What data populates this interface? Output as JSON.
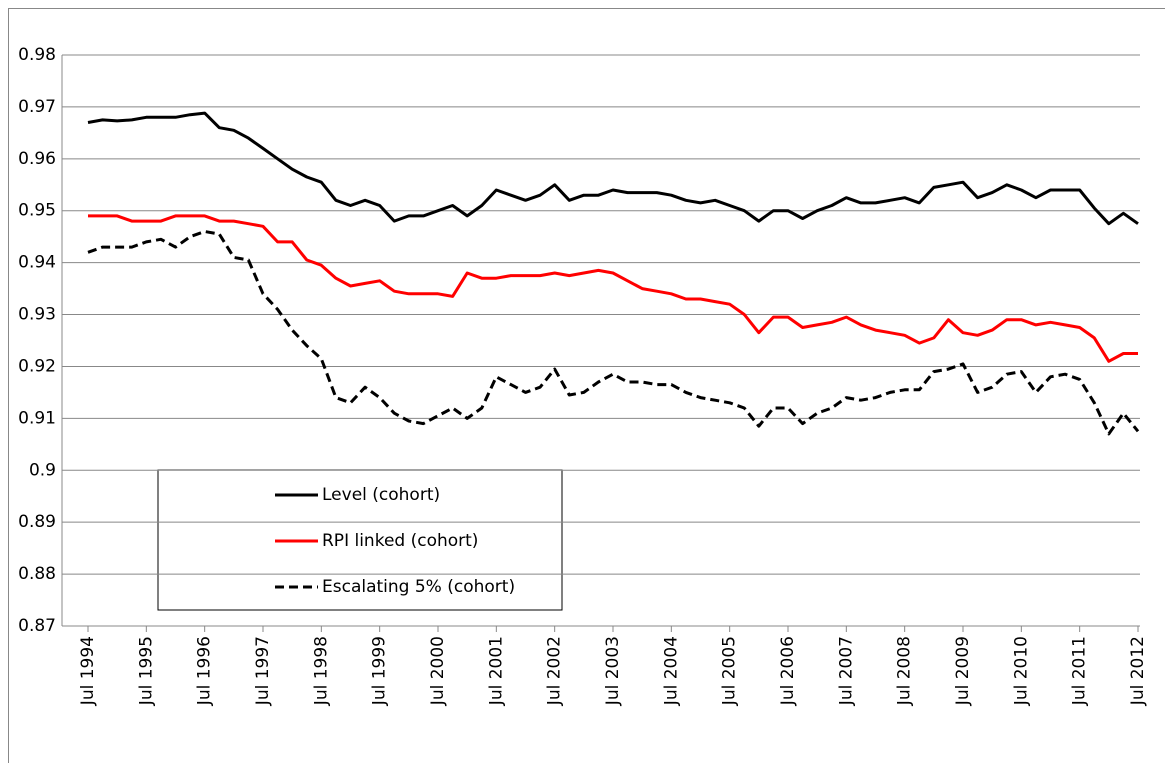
{
  "chart_data": {
    "type": "line",
    "categories": [
      "Jul 1994",
      null,
      null,
      null,
      "Jul 1995",
      null,
      null,
      null,
      "Jul 1996",
      null,
      null,
      null,
      "Jul 1997",
      null,
      null,
      null,
      "Jul 1998",
      null,
      null,
      null,
      "Jul 1999",
      null,
      null,
      null,
      "Jul 2000",
      null,
      null,
      null,
      "Jul 2001",
      null,
      null,
      null,
      "Jul 2002",
      null,
      null,
      null,
      "Jul 2003",
      null,
      null,
      null,
      "Jul 2004",
      null,
      null,
      null,
      "Jul 2005",
      null,
      null,
      null,
      "Jul 2006",
      null,
      null,
      null,
      "Jul 2007",
      null,
      null,
      null,
      "Jul 2008",
      null,
      null,
      null,
      "Jul 2009",
      null,
      null,
      null,
      "Jul 2010",
      null,
      null,
      null,
      "Jul 2011",
      null,
      null,
      null,
      "Jul 2012"
    ],
    "series": [
      {
        "name": "Level (cohort)",
        "color": "#000000",
        "dashed": false,
        "values": [
          0.967,
          0.9675,
          0.9673,
          0.9675,
          0.968,
          0.968,
          0.968,
          0.9685,
          0.9688,
          0.966,
          0.9655,
          0.964,
          0.962,
          0.96,
          0.958,
          0.9565,
          0.9555,
          0.952,
          0.951,
          0.952,
          0.951,
          0.948,
          0.949,
          0.949,
          0.95,
          0.951,
          0.949,
          0.951,
          0.954,
          0.953,
          0.952,
          0.953,
          0.955,
          0.952,
          0.953,
          0.953,
          0.954,
          0.9535,
          0.9535,
          0.9535,
          0.953,
          0.952,
          0.9515,
          0.952,
          0.951,
          0.95,
          0.948,
          0.95,
          0.95,
          0.9485,
          0.95,
          0.951,
          0.9525,
          0.9515,
          0.9515,
          0.952,
          0.9525,
          0.9515,
          0.9545,
          0.955,
          0.9555,
          0.9525,
          0.9535,
          0.955,
          0.954,
          0.9525,
          0.954,
          0.954,
          0.954,
          0.9505,
          0.9475,
          0.9495,
          0.9475
        ]
      },
      {
        "name": "RPI linked (cohort)",
        "color": "#ff0000",
        "dashed": false,
        "values": [
          0.949,
          0.949,
          0.949,
          0.948,
          0.948,
          0.948,
          0.949,
          0.949,
          0.949,
          0.948,
          0.948,
          0.9475,
          0.947,
          0.944,
          0.944,
          0.9405,
          0.9395,
          0.937,
          0.9355,
          0.936,
          0.9365,
          0.9345,
          0.934,
          0.934,
          0.934,
          0.9335,
          0.938,
          0.937,
          0.937,
          0.9375,
          0.9375,
          0.9375,
          0.938,
          0.9375,
          0.938,
          0.9385,
          0.938,
          0.9365,
          0.935,
          0.9345,
          0.934,
          0.933,
          0.933,
          0.9325,
          0.932,
          0.93,
          0.9265,
          0.9295,
          0.9295,
          0.9275,
          0.928,
          0.9285,
          0.9295,
          0.928,
          0.927,
          0.9265,
          0.926,
          0.9245,
          0.9255,
          0.929,
          0.9265,
          0.926,
          0.927,
          0.929,
          0.929,
          0.928,
          0.9285,
          0.928,
          0.9275,
          0.9255,
          0.921,
          0.9225,
          0.9225
        ]
      },
      {
        "name": "Escalating 5% (cohort)",
        "color": "#000000",
        "dashed": true,
        "values": [
          0.942,
          0.943,
          0.943,
          0.943,
          0.944,
          0.9445,
          0.943,
          0.945,
          0.946,
          0.9455,
          0.941,
          0.9405,
          0.934,
          0.931,
          0.927,
          0.924,
          0.9215,
          0.914,
          0.913,
          0.916,
          0.914,
          0.911,
          0.9095,
          0.909,
          0.9105,
          0.912,
          0.91,
          0.912,
          0.918,
          0.9165,
          0.915,
          0.916,
          0.9195,
          0.9145,
          0.915,
          0.917,
          0.9185,
          0.917,
          0.917,
          0.9165,
          0.9165,
          0.915,
          0.914,
          0.9135,
          0.913,
          0.912,
          0.9085,
          0.912,
          0.912,
          0.909,
          0.911,
          0.912,
          0.914,
          0.9135,
          0.914,
          0.915,
          0.9155,
          0.9155,
          0.919,
          0.9195,
          0.9205,
          0.915,
          0.916,
          0.9185,
          0.919,
          0.915,
          0.918,
          0.9185,
          0.9175,
          0.913,
          0.907,
          0.911,
          0.9075
        ]
      }
    ],
    "ylim": [
      0.87,
      0.98
    ],
    "yticks": [
      0.87,
      0.88,
      0.89,
      0.9,
      0.91,
      0.92,
      0.93,
      0.94,
      0.95,
      0.96,
      0.97,
      0.98
    ],
    "grid": true
  }
}
